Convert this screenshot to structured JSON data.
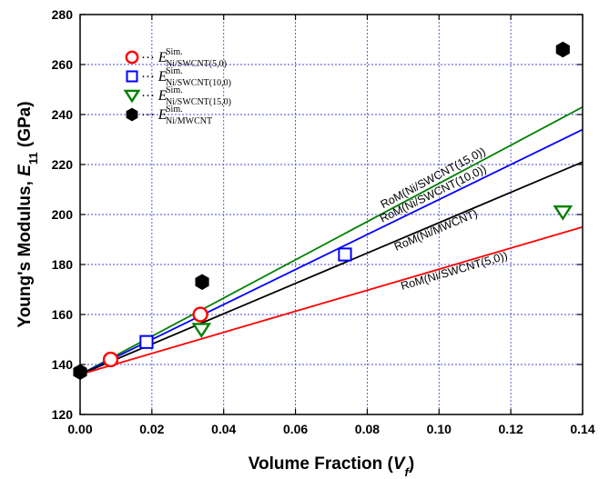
{
  "chart_data": {
    "type": "scatter",
    "xlabel": "Volume Fraction",
    "xlabel_symbol": "V",
    "xlabel_subscript": "f",
    "ylabel": "Young's Modulus,",
    "ylabel_symbol": "E",
    "ylabel_subscript": "11",
    "ylabel_unit": "(GPa)",
    "xlim": [
      0.0,
      0.14
    ],
    "ylim": [
      120,
      280
    ],
    "xticks": [
      "0.00",
      "0.02",
      "0.04",
      "0.06",
      "0.08",
      "0.10",
      "0.12",
      "0.14"
    ],
    "yticks": [
      "120",
      "140",
      "160",
      "180",
      "200",
      "220",
      "240",
      "260",
      "280"
    ],
    "grid": true,
    "legend_position": "top-left",
    "series": [
      {
        "name": "Ni/SWCNT(5,0)",
        "marker": "circle",
        "color": "#ff0000",
        "x": [
          0.0085,
          0.0335
        ],
        "y": [
          142,
          160
        ]
      },
      {
        "name": "Ni/SWCNT(10,0)",
        "marker": "square",
        "color": "#0000ff",
        "x": [
          0.0185,
          0.0738
        ],
        "y": [
          149,
          184
        ]
      },
      {
        "name": "Ni/SWCNT(15,0)",
        "marker": "triangle-down",
        "color": "#008000",
        "x": [
          0.0338,
          0.1345
        ],
        "y": [
          154,
          201
        ]
      },
      {
        "name": "Ni/MWCNT",
        "marker": "hexagon",
        "color": "#000000",
        "x": [
          0.0,
          0.034,
          0.1345
        ],
        "y": [
          137,
          173,
          266
        ]
      }
    ],
    "lines": [
      {
        "label": "RoM(Ni/SWCNT(15,0))",
        "color": "#008000",
        "x": [
          0.0,
          0.14
        ],
        "y": [
          136,
          243
        ]
      },
      {
        "label": "RoM(Ni/SWCNT(10,0))",
        "color": "#0000ff",
        "x": [
          0.0,
          0.14
        ],
        "y": [
          136,
          234
        ]
      },
      {
        "label": "RoM(Ni/MWCNT)",
        "color": "#000000",
        "x": [
          0.0,
          0.14
        ],
        "y": [
          136,
          221
        ]
      },
      {
        "label": "RoM(Ni/SWCNT(5,0))",
        "color": "#ff0000",
        "x": [
          0.0,
          0.14
        ],
        "y": [
          136,
          195
        ]
      }
    ],
    "legend": [
      {
        "prefix": "E",
        "sup": "Sim.",
        "sub": "Ni/SWCNT(5,0)",
        "marker": "circle",
        "color": "#ff0000"
      },
      {
        "prefix": "E",
        "sup": "Sim.",
        "sub": "Ni/SWCNT(10,0)",
        "marker": "square",
        "color": "#0000ff"
      },
      {
        "prefix": "E",
        "sup": "Sim.",
        "sub": "Ni/SWCNT(15,0)",
        "marker": "triangle-down",
        "color": "#008000"
      },
      {
        "prefix": "E",
        "sup": "Sim.",
        "sub": "Ni/MWCNT",
        "marker": "hexagon",
        "color": "#000000"
      }
    ]
  }
}
